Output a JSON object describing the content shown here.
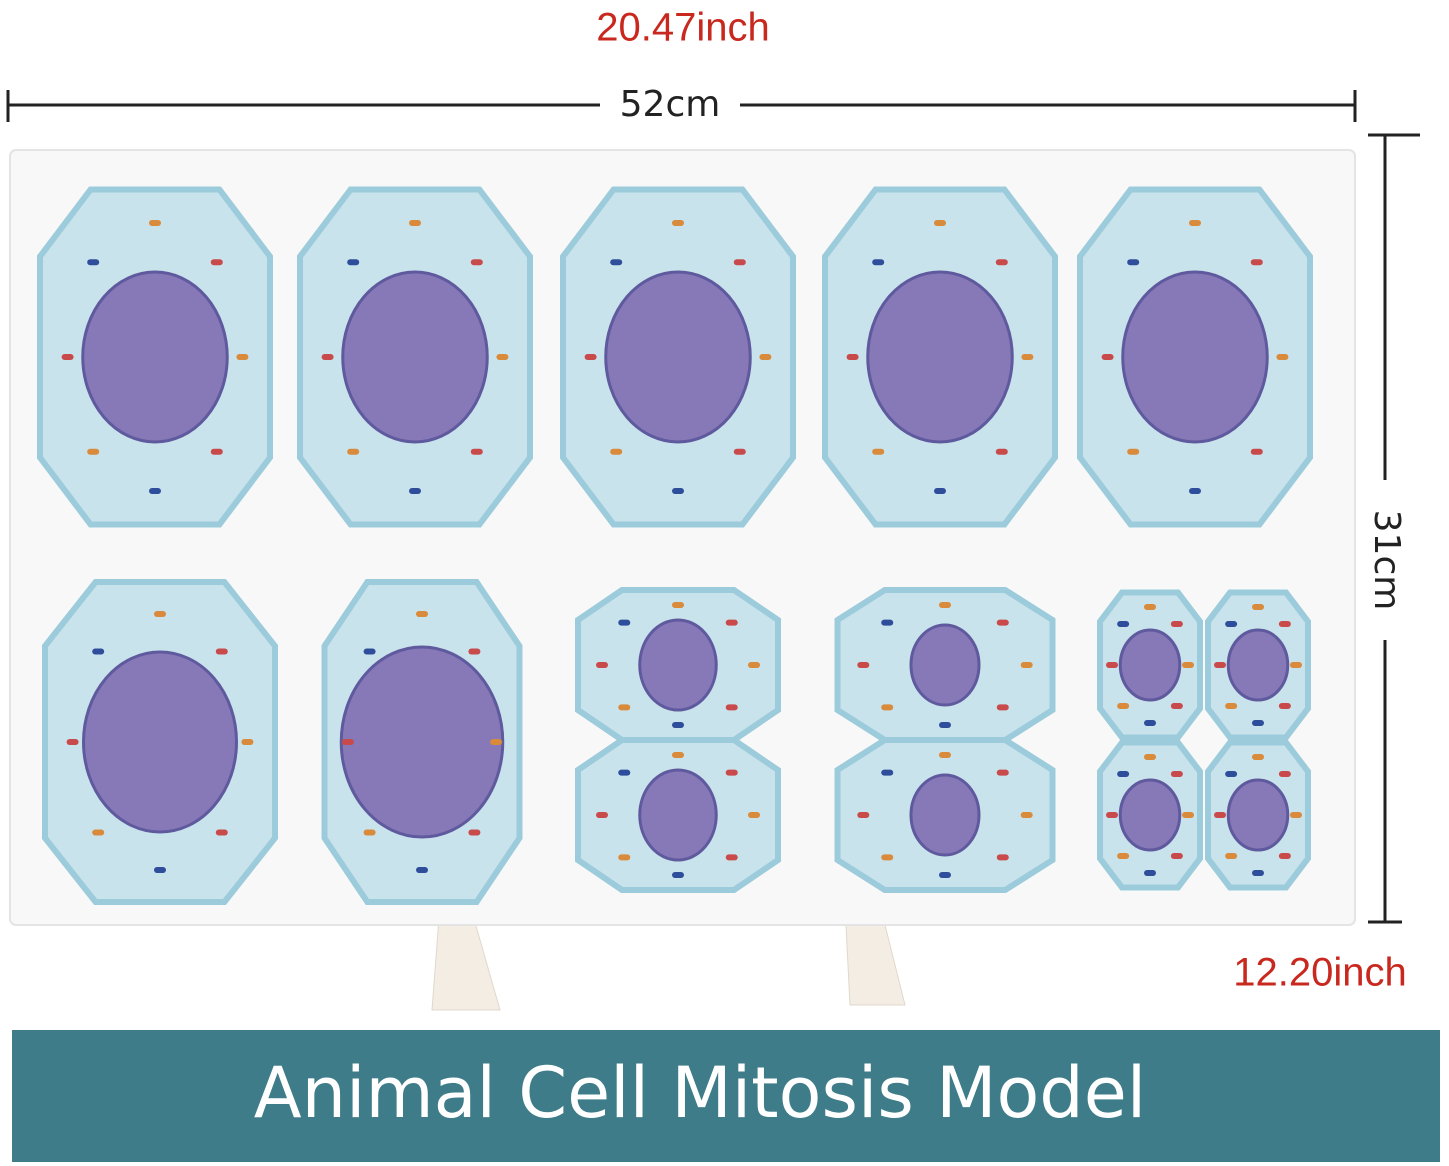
{
  "dimensions": {
    "width_inch": "20.47inch",
    "width_cm": "52cm",
    "height_cm": "31cm",
    "height_inch": "12.20inch"
  },
  "caption": "Animal Cell Mitosis Model"
}
